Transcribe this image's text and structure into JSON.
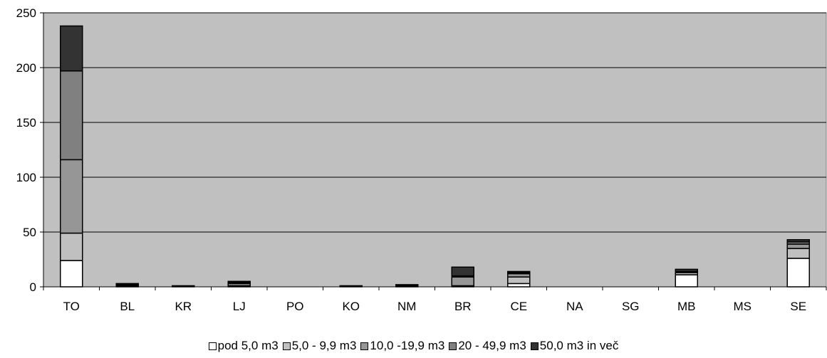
{
  "chart_data": {
    "type": "bar",
    "stacked": true,
    "title": "",
    "xlabel": "",
    "ylabel": "",
    "ylim": [
      0,
      250
    ],
    "yticks": [
      0,
      50,
      100,
      150,
      200,
      250
    ],
    "grid": true,
    "legend_position": "bottom",
    "categories": [
      "TO",
      "BL",
      "KR",
      "LJ",
      "PO",
      "KO",
      "NM",
      "BR",
      "CE",
      "NA",
      "SG",
      "MB",
      "MS",
      "SE"
    ],
    "series": [
      {
        "name": "pod 5,0 m3",
        "color": "#ffffff",
        "values": [
          24,
          0,
          0,
          0,
          0,
          0,
          0,
          0,
          3,
          0,
          0,
          11,
          0,
          26
        ]
      },
      {
        "name": "5,0 - 9,9 m3",
        "color": "#c0c0c0",
        "values": [
          25,
          0,
          0,
          1,
          0,
          0,
          0,
          1,
          6,
          0,
          0,
          2,
          0,
          9
        ]
      },
      {
        "name": "10,0 -19,9 m3",
        "color": "#969696",
        "values": [
          67,
          1,
          0,
          2,
          0,
          0,
          1,
          8,
          3,
          0,
          0,
          1,
          0,
          4
        ]
      },
      {
        "name": "20 - 49,9 m3",
        "color": "#808080",
        "values": [
          81,
          1,
          1,
          1,
          0,
          1,
          1,
          1,
          1,
          0,
          0,
          0,
          0,
          2
        ]
      },
      {
        "name": "50,0 m3 in več",
        "color": "#333333",
        "values": [
          41,
          1,
          0,
          1,
          0,
          0,
          0,
          8,
          1,
          0,
          0,
          2,
          0,
          2
        ]
      }
    ]
  },
  "colors": {
    "plot_background": "#c0c0c0",
    "gridline": "#000000"
  }
}
